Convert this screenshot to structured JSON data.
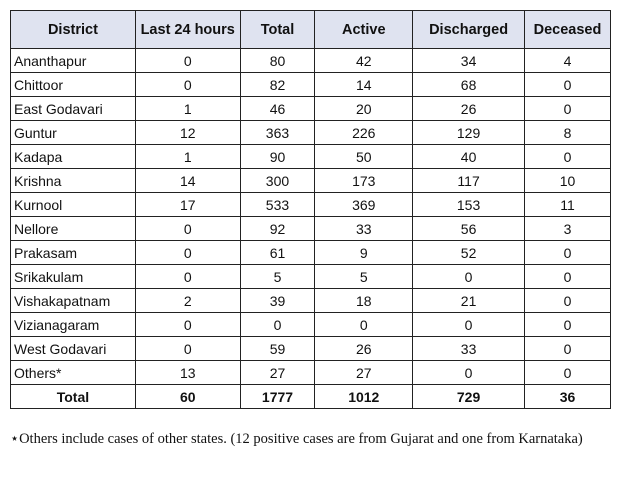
{
  "table": {
    "headers": [
      "District",
      "Last 24 hours",
      "Total",
      "Active",
      "Discharged",
      "Deceased"
    ],
    "rows": [
      [
        "Ananthapur",
        0,
        80,
        42,
        34,
        4
      ],
      [
        "Chittoor",
        0,
        82,
        14,
        68,
        0
      ],
      [
        "East Godavari",
        1,
        46,
        20,
        26,
        0
      ],
      [
        "Guntur",
        12,
        363,
        226,
        129,
        8
      ],
      [
        "Kadapa",
        1,
        90,
        50,
        40,
        0
      ],
      [
        "Krishna",
        14,
        300,
        173,
        117,
        10
      ],
      [
        "Kurnool",
        17,
        533,
        369,
        153,
        11
      ],
      [
        "Nellore",
        0,
        92,
        33,
        56,
        3
      ],
      [
        "Prakasam",
        0,
        61,
        9,
        52,
        0
      ],
      [
        "Srikakulam",
        0,
        5,
        5,
        0,
        0
      ],
      [
        "Vishakapatnam",
        2,
        39,
        18,
        21,
        0
      ],
      [
        "Vizianagaram",
        0,
        0,
        0,
        0,
        0
      ],
      [
        "West Godavari",
        0,
        59,
        26,
        33,
        0
      ],
      [
        "Others*",
        13,
        27,
        27,
        0,
        0
      ]
    ],
    "total": [
      "Total",
      60,
      1777,
      1012,
      729,
      36
    ]
  },
  "footnote": "⋆Others include cases of other states. (12 positive cases are from Gujarat and one from Karnataka)"
}
